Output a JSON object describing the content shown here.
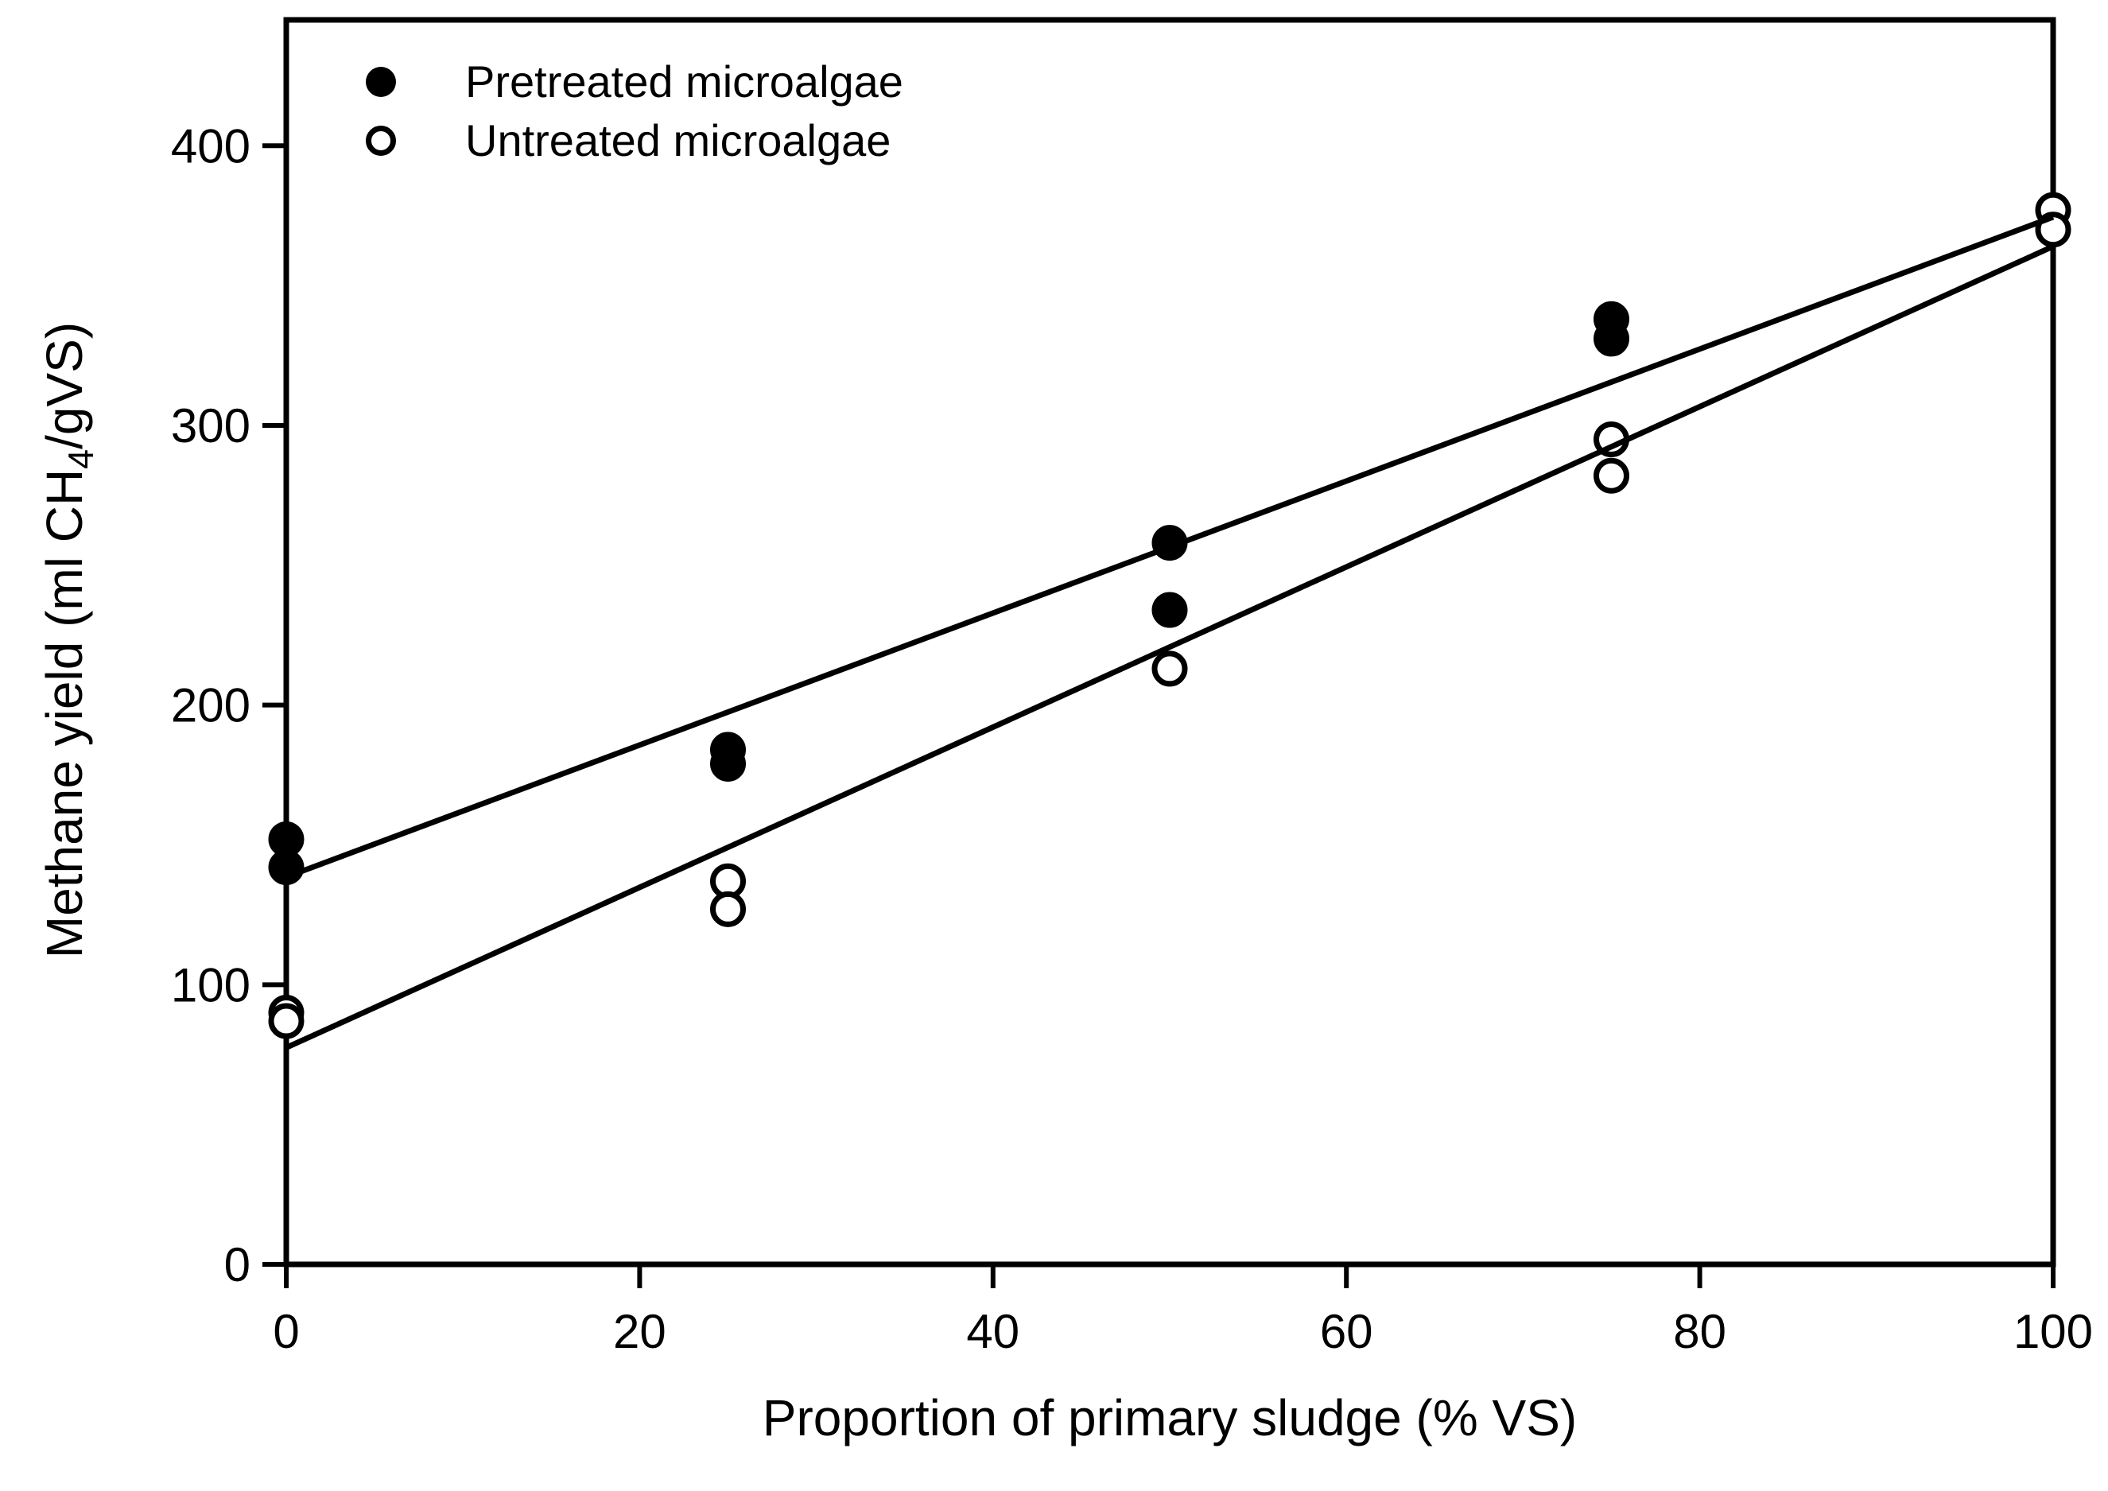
{
  "figure": {
    "background": "#ffffff",
    "foreground": "#000000"
  },
  "axes": {
    "x_title": "Proportion of primary sludge (% VS)",
    "y_title_parts": {
      "pre": "Methane yield (ml CH",
      "sub": "4",
      "post": "/gVS)"
    }
  },
  "chart_data": {
    "type": "scatter",
    "title": "",
    "xlabel": "Proportion of primary sludge (% VS)",
    "ylabel": "Methane yield (ml CH4/gVS)",
    "xlim": [
      0,
      100
    ],
    "ylim": [
      0,
      445
    ],
    "x_ticks": [
      0,
      20,
      40,
      60,
      80,
      100
    ],
    "y_ticks": [
      0,
      100,
      200,
      300,
      400
    ],
    "grid": false,
    "legend_position": "top-left",
    "frame": "full-box",
    "marker_radius_px": 19,
    "series": [
      {
        "name": "Pretreated microalgae",
        "marker": "filled-circle",
        "color": "#000000",
        "points": [
          [
            0,
            152
          ],
          [
            0,
            142
          ],
          [
            25,
            184
          ],
          [
            25,
            179
          ],
          [
            50,
            258
          ],
          [
            50,
            234
          ],
          [
            75,
            338
          ],
          [
            75,
            331
          ]
        ],
        "fit_line": {
          "x": [
            0,
            100
          ],
          "y": [
            138.5,
            374.5
          ]
        }
      },
      {
        "name": "Untreated microalgae",
        "marker": "open-circle",
        "color": "#000000",
        "points": [
          [
            0,
            90
          ],
          [
            0,
            87
          ],
          [
            25,
            137
          ],
          [
            25,
            127
          ],
          [
            50,
            213
          ],
          [
            75,
            295
          ],
          [
            75,
            282
          ],
          [
            100,
            377
          ],
          [
            100,
            370
          ]
        ],
        "fit_line": {
          "x": [
            0,
            100
          ],
          "y": [
            77.5,
            364
          ]
        }
      }
    ]
  }
}
